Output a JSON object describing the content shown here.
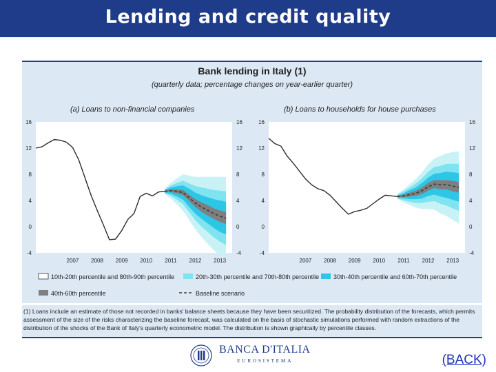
{
  "header": {
    "title": "Lending and credit quality"
  },
  "figure": {
    "title": "Bank lending in Italy (1)",
    "subtitle": "(quarterly data; percentage changes on year-earlier quarter)",
    "footnote": "(1) Loans include an estimate of those not recorded in banks' balance sheets because they have been securitized. The probability distribution of the forecasts, which permits assessment of the size of the risks characterizing the baseline forecast, was calculated on the basis of stochastic simulations performed with random extractions of the distribution of the shocks of the Bank of Italy's quarterly econometric model. The distribution is shown graphically by percentile classes.",
    "legend": {
      "p10_20": "10th-20th percentile and 80th-90th percentile",
      "p20_30": "20th-30th percentile and 70th-80th percentile",
      "p30_40": "30th-40th percentile and 60th-70th percentile",
      "p40_60": "40th-60th percentile",
      "baseline": "Baseline scenario"
    }
  },
  "colors": {
    "title_bar": "#1f3c8a",
    "panel_bg": "#dce8f4",
    "band_outer": "#c9f2f7",
    "band_mid": "#7fe4f0",
    "band_inner": "#2ec6e6",
    "band_center": "#7f7f7f",
    "history_line": "#2b2b2b"
  },
  "logo": {
    "name": "BANCA D'ITALIA",
    "sub": "EUROSISTEMA"
  },
  "back_link": "(BACK)",
  "chart_data": [
    {
      "type": "line",
      "title": "(a) Loans to non-financial companies",
      "x_ticks": [
        "2007",
        "2008",
        "2009",
        "2010",
        "2011",
        "2012",
        "2013"
      ],
      "ylim": [
        -4,
        16
      ],
      "y_ticks": [
        "-4",
        "0",
        "4",
        "8",
        "12",
        "16"
      ],
      "grid": false,
      "history": {
        "name": "",
        "x": [
          2006.0,
          2006.25,
          2006.5,
          2006.75,
          2007.0,
          2007.25,
          2007.5,
          2007.75,
          2008.0,
          2008.25,
          2008.5,
          2008.75,
          2009.0,
          2009.25,
          2009.5,
          2009.75,
          2010.0,
          2010.25,
          2010.5,
          2010.75,
          2011.0,
          2011.25
        ],
        "y": [
          12.0,
          12.2,
          12.8,
          13.3,
          13.2,
          12.9,
          12.1,
          10.2,
          7.5,
          4.8,
          2.5,
          0.3,
          -2.0,
          -1.9,
          -0.6,
          1.1,
          2.0,
          4.6,
          5.1,
          4.7,
          5.3,
          5.4
        ]
      },
      "forecast": {
        "x": [
          2011.25,
          2011.5,
          2011.75,
          2012.0,
          2012.25,
          2012.5,
          2012.75,
          2013.0,
          2013.25,
          2013.5,
          2013.75
        ],
        "baseline": [
          5.4,
          5.5,
          5.4,
          5.2,
          4.4,
          3.6,
          3.0,
          2.5,
          2.0,
          1.6,
          1.3
        ],
        "p10_90": [
          0.4,
          1.2,
          2.0,
          2.8,
          3.4,
          4.0,
          4.6,
          5.1,
          5.6,
          6.0,
          6.3
        ],
        "p20_80": [
          0.3,
          0.8,
          1.3,
          1.8,
          2.2,
          2.6,
          3.0,
          3.3,
          3.6,
          3.9,
          4.1
        ],
        "p30_70": [
          0.2,
          0.5,
          0.8,
          1.1,
          1.4,
          1.6,
          1.8,
          2.0,
          2.2,
          2.4,
          2.5
        ],
        "p40_60": [
          0.1,
          0.2,
          0.3,
          0.4,
          0.5,
          0.6,
          0.7,
          0.8,
          0.8,
          0.9,
          0.9
        ]
      }
    },
    {
      "type": "line",
      "title": "(b) Loans to households for house purchases",
      "x_ticks": [
        "2007",
        "2008",
        "2009",
        "2010",
        "2011",
        "2012",
        "2013"
      ],
      "ylim": [
        -4,
        16
      ],
      "y_ticks": [
        "-4",
        "0",
        "4",
        "8",
        "12",
        "16"
      ],
      "grid": false,
      "history": {
        "name": "",
        "x": [
          2006.0,
          2006.25,
          2006.5,
          2006.75,
          2007.0,
          2007.25,
          2007.5,
          2007.75,
          2008.0,
          2008.25,
          2008.5,
          2008.75,
          2009.0,
          2009.25,
          2009.5,
          2009.75,
          2010.0,
          2010.25,
          2010.5,
          2010.75,
          2011.0,
          2011.25
        ],
        "y": [
          13.5,
          12.7,
          12.3,
          10.8,
          9.7,
          8.5,
          7.3,
          6.4,
          5.8,
          5.5,
          4.8,
          3.8,
          2.8,
          1.9,
          2.3,
          2.5,
          2.8,
          3.5,
          4.2,
          4.8,
          4.7,
          4.6
        ]
      },
      "forecast": {
        "x": [
          2011.25,
          2011.5,
          2011.75,
          2012.0,
          2012.25,
          2012.5,
          2012.75,
          2013.0,
          2013.25,
          2013.5,
          2013.75
        ],
        "baseline": [
          4.6,
          4.7,
          4.9,
          5.1,
          5.5,
          6.1,
          6.5,
          6.4,
          6.4,
          6.2,
          6.0
        ],
        "p10_90": [
          0.4,
          1.0,
          1.6,
          2.2,
          2.8,
          3.4,
          3.9,
          4.4,
          4.8,
          5.2,
          5.5
        ],
        "p20_80": [
          0.3,
          0.7,
          1.1,
          1.5,
          1.9,
          2.3,
          2.6,
          2.9,
          3.2,
          3.4,
          3.6
        ],
        "p30_70": [
          0.2,
          0.4,
          0.7,
          0.9,
          1.2,
          1.4,
          1.6,
          1.8,
          2.0,
          2.1,
          2.2
        ],
        "p40_60": [
          0.1,
          0.2,
          0.3,
          0.4,
          0.5,
          0.6,
          0.6,
          0.7,
          0.7,
          0.8,
          0.8
        ]
      }
    }
  ]
}
